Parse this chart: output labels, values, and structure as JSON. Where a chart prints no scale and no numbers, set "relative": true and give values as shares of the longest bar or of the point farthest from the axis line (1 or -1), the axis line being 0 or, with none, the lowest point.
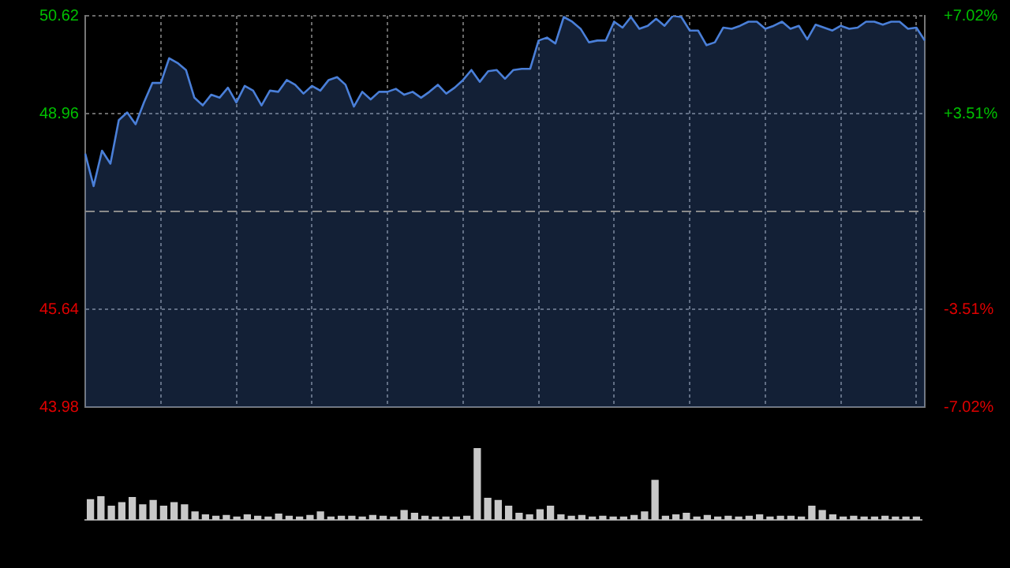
{
  "chart_data": [
    {
      "type": "area",
      "categories": [
        null,
        null,
        null,
        null,
        null,
        null,
        null,
        null,
        null,
        null,
        null,
        null,
        null,
        null,
        null,
        null,
        null,
        null,
        null,
        null,
        null,
        null,
        null,
        null,
        null,
        null,
        null,
        null,
        null,
        null,
        null,
        null,
        null,
        null,
        null,
        null,
        null,
        null,
        null,
        null,
        null,
        null,
        null,
        null,
        null,
        null,
        null,
        null,
        null,
        null,
        null,
        null,
        null,
        null,
        null,
        null,
        null,
        null,
        null,
        null,
        null,
        null,
        null,
        null,
        null,
        null,
        null,
        null,
        null,
        null,
        null,
        null,
        null,
        null,
        null,
        null,
        null,
        null,
        null,
        null,
        null,
        null,
        null,
        null,
        null,
        null,
        null,
        null,
        null,
        null,
        null,
        null,
        null,
        null,
        null,
        null,
        null,
        null,
        null,
        null,
        null
      ],
      "series": [
        {
          "color": "#4a7fd8",
          "values": [
            48.28,
            47.73,
            48.33,
            48.11,
            48.85,
            48.98,
            48.78,
            49.15,
            49.48,
            49.48,
            49.9,
            49.82,
            49.7,
            49.23,
            49.1,
            49.28,
            49.23,
            49.4,
            49.15,
            49.43,
            49.35,
            49.1,
            49.35,
            49.33,
            49.53,
            49.45,
            49.3,
            49.43,
            49.35,
            49.53,
            49.58,
            49.45,
            49.08,
            49.33,
            49.2,
            49.33,
            49.33,
            49.38,
            49.28,
            49.33,
            49.23,
            49.33,
            49.45,
            49.3,
            49.4,
            49.53,
            49.7,
            49.5,
            49.68,
            49.7,
            49.55,
            49.7,
            49.72,
            49.72,
            50.2,
            50.25,
            50.15,
            50.6,
            50.52,
            50.4,
            50.17,
            50.2,
            50.2,
            50.52,
            50.42,
            50.6,
            50.4,
            50.45,
            50.57,
            50.45,
            50.62,
            50.6,
            50.37,
            50.37,
            50.12,
            50.17,
            50.42,
            50.4,
            50.45,
            50.52,
            50.52,
            50.4,
            50.45,
            50.52,
            50.4,
            50.45,
            50.22,
            50.47,
            50.42,
            50.37,
            50.45,
            50.4,
            50.42,
            50.52,
            50.52,
            50.47,
            50.52,
            50.52,
            50.4,
            50.42,
            50.2
          ]
        }
      ],
      "ylim": [
        43.98,
        50.62
      ],
      "yticks": [
        43.98,
        45.64,
        48.96,
        50.62
      ],
      "y2lim": [
        -7.02,
        7.02
      ],
      "y2ticks": [
        {
          "value": -7.02,
          "label": "-7.02%"
        },
        {
          "value": -3.51,
          "label": "-3.51%"
        },
        {
          "value": 3.51,
          "label": "+3.51%"
        },
        {
          "value": 7.02,
          "label": "+7.02%"
        }
      ],
      "ref_lines": [
        {
          "axis": "y",
          "value": 47.3,
          "color": "#8a8a8a",
          "line_style": "dashed"
        }
      ],
      "grid": true,
      "legend": false,
      "marker": "none",
      "line_style": "solid"
    },
    {
      "type": "bar",
      "relative": true,
      "color": "#c8c8c8",
      "grid": false,
      "legend": false,
      "categories": [
        null,
        null,
        null,
        null,
        null,
        null,
        null,
        null,
        null,
        null,
        null,
        null,
        null,
        null,
        null,
        null,
        null,
        null,
        null,
        null,
        null,
        null,
        null,
        null,
        null,
        null,
        null,
        null,
        null,
        null,
        null,
        null,
        null,
        null,
        null,
        null,
        null,
        null,
        null,
        null,
        null,
        null,
        null,
        null,
        null,
        null,
        null,
        null,
        null,
        null,
        null,
        null,
        null,
        null,
        null,
        null,
        null,
        null,
        null,
        null,
        null,
        null,
        null,
        null,
        null,
        null,
        null,
        null,
        null,
        null,
        null,
        null,
        null,
        null,
        null,
        null,
        null,
        null,
        null,
        null
      ],
      "values": [
        0.29,
        0.33,
        0.2,
        0.25,
        0.32,
        0.22,
        0.28,
        0.2,
        0.25,
        0.22,
        0.12,
        0.08,
        0.06,
        0.07,
        0.05,
        0.08,
        0.06,
        0.05,
        0.09,
        0.06,
        0.05,
        0.07,
        0.12,
        0.05,
        0.06,
        0.06,
        0.05,
        0.07,
        0.06,
        0.05,
        0.14,
        0.1,
        0.06,
        0.05,
        0.05,
        0.05,
        0.06,
        1,
        0.31,
        0.28,
        0.2,
        0.1,
        0.08,
        0.15,
        0.2,
        0.08,
        0.06,
        0.07,
        0.05,
        0.06,
        0.05,
        0.05,
        0.07,
        0.12,
        0.56,
        0.06,
        0.08,
        0.1,
        0.05,
        0.07,
        0.05,
        0.06,
        0.05,
        0.06,
        0.08,
        0.05,
        0.06,
        0.06,
        0.05,
        0.2,
        0.14,
        0.08,
        0.05,
        0.06,
        0.05,
        0.05,
        0.06,
        0.05,
        0.05,
        0.05
      ]
    }
  ]
}
